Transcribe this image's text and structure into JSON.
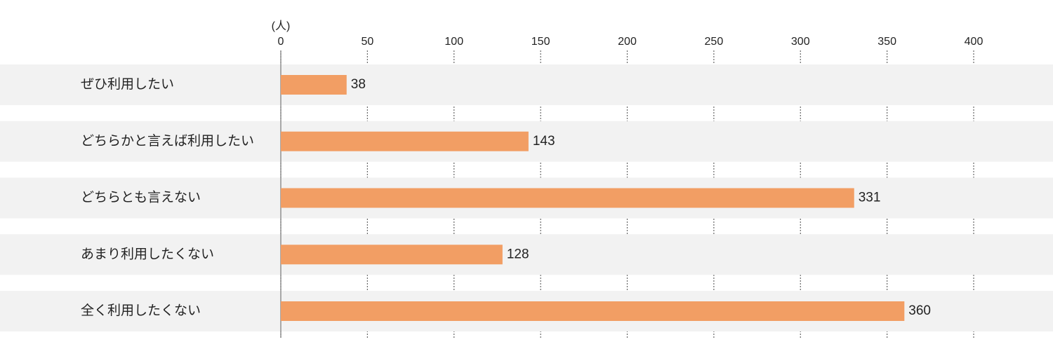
{
  "chart_data": {
    "type": "bar",
    "orientation": "horizontal",
    "xlabel": "(人)",
    "categories": [
      "ぜひ利用したい",
      "どちらかと言えば利用したい",
      "どちらとも言えない",
      "あまり利用したくない",
      "全く利用したくない"
    ],
    "values": [
      38,
      143,
      331,
      128,
      360
    ],
    "color": "#f29e64",
    "xlim": [
      0,
      400
    ],
    "xticks": [
      0,
      50,
      100,
      150,
      200,
      250,
      300,
      350,
      400
    ],
    "grid": true
  }
}
